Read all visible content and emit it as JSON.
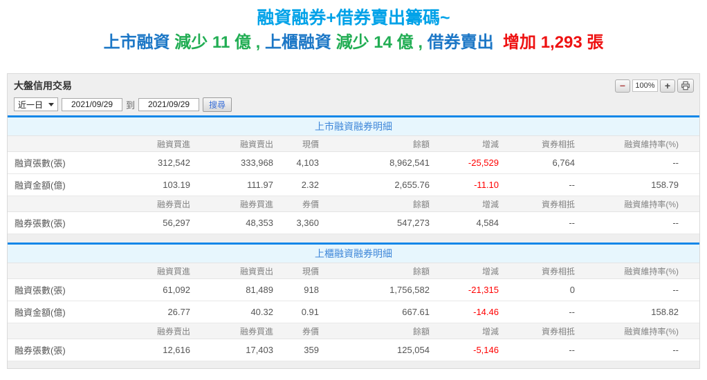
{
  "header": {
    "title": "融資融券+借券賣出籌碼~",
    "subtitle_segments": [
      {
        "text": "上市融資 ",
        "color": "blue"
      },
      {
        "text": "減少 11 億 , ",
        "color": "green"
      },
      {
        "text": "上櫃融資 ",
        "color": "blue"
      },
      {
        "text": "減少 14 億 , ",
        "color": "green"
      },
      {
        "text": "借券賣出 ",
        "color": "blue"
      },
      {
        "text": " 增加 1,293 張",
        "color": "red"
      }
    ]
  },
  "panel": {
    "title": "大盤信用交易",
    "zoom": {
      "minus_label": "−",
      "level": "100%",
      "plus_label": "+"
    },
    "filters": {
      "range_value": "近一日",
      "date_from": "2021/09/29",
      "to_label": "到",
      "date_to": "2021/09/29",
      "search_label": "搜尋"
    }
  },
  "sections": [
    {
      "caption": "上市融資融券明細",
      "blocks": [
        {
          "headers": [
            "",
            "融資買進",
            "融資賣出",
            "現價",
            "餘額",
            "增減",
            "資券相抵",
            "融資維持率(%)"
          ],
          "rows": [
            {
              "label": "融資張數(張)",
              "cells": [
                "312,542",
                "333,968",
                "4,103",
                "8,962,541",
                "-25,529",
                "6,764",
                "--"
              ]
            },
            {
              "label": "融資金額(億)",
              "cells": [
                "103.19",
                "111.97",
                "2.32",
                "2,655.76",
                "-11.10",
                "--",
                "158.79"
              ]
            }
          ]
        },
        {
          "headers": [
            "",
            "融券賣出",
            "融券買進",
            "券價",
            "餘額",
            "增減",
            "資券相抵",
            "融資維持率(%)"
          ],
          "rows": [
            {
              "label": "融券張數(張)",
              "cells": [
                "56,297",
                "48,353",
                "3,360",
                "547,273",
                "4,584",
                "--",
                "--"
              ]
            }
          ]
        }
      ]
    },
    {
      "caption": "上櫃融資融券明細",
      "blocks": [
        {
          "headers": [
            "",
            "融資買進",
            "融資賣出",
            "現價",
            "餘額",
            "增減",
            "資券相抵",
            "融資維持率(%)"
          ],
          "rows": [
            {
              "label": "融資張數(張)",
              "cells": [
                "61,092",
                "81,489",
                "918",
                "1,756,582",
                "-21,315",
                "0",
                "--"
              ]
            },
            {
              "label": "融資金額(億)",
              "cells": [
                "26.77",
                "40.32",
                "0.91",
                "667.61",
                "-14.46",
                "--",
                "158.82"
              ]
            }
          ]
        },
        {
          "headers": [
            "",
            "融券賣出",
            "融券買進",
            "券價",
            "餘額",
            "增減",
            "資券相抵",
            "融資維持率(%)"
          ],
          "rows": [
            {
              "label": "融券張數(張)",
              "cells": [
                "12,616",
                "17,403",
                "359",
                "125,054",
                "-5,146",
                "--",
                "--"
              ]
            }
          ]
        }
      ]
    }
  ],
  "colors": {
    "title_cyan": "#00A2E8",
    "subtitle_blue": "#1C77C6",
    "subtitle_green": "#21AD53",
    "subtitle_red": "#EE1111",
    "negative_red": "#FF0000",
    "section_border_blue": "#1287E8",
    "caption_bg": "#E7F6FD",
    "caption_text": "#3F87D9",
    "panel_bg": "#EFEFEF"
  }
}
